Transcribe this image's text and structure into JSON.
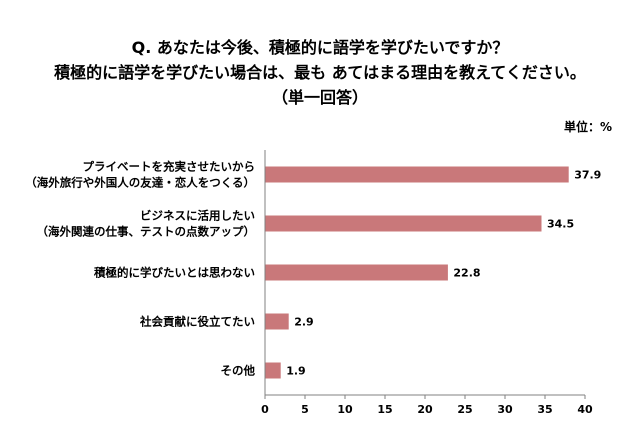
{
  "chart_data": {
    "type": "bar",
    "orientation": "horizontal",
    "title_lines": [
      "Q. あなたは今後、積極的に語学を学びたいですか？",
      "積極的に語学を学びたい場合は、最も あてはまる理由を教えてください。",
      "（単一回答）"
    ],
    "unit": "単位：%",
    "categories": [
      [
        "プライベートを充実させたいから",
        "（海外旅行や外国人の友達・恋人をつくる）"
      ],
      [
        "ビジネスに活用したい",
        "（海外関連の仕事、テストの点数アップ）"
      ],
      [
        "積極的に学びたいとは思わない"
      ],
      [
        "社会貢献に役立てたい"
      ],
      [
        "その他"
      ]
    ],
    "values": [
      37.9,
      34.5,
      22.8,
      2.9,
      1.9
    ],
    "value_labels": [
      "37.9",
      "34.5",
      "22.8",
      "2.9",
      "1.9"
    ],
    "xlim": [
      0,
      40
    ],
    "xticks": [
      "0",
      "5",
      "10",
      "15",
      "20",
      "25",
      "30",
      "35",
      "40"
    ],
    "grid": false,
    "bar_color": "#c9787a"
  }
}
